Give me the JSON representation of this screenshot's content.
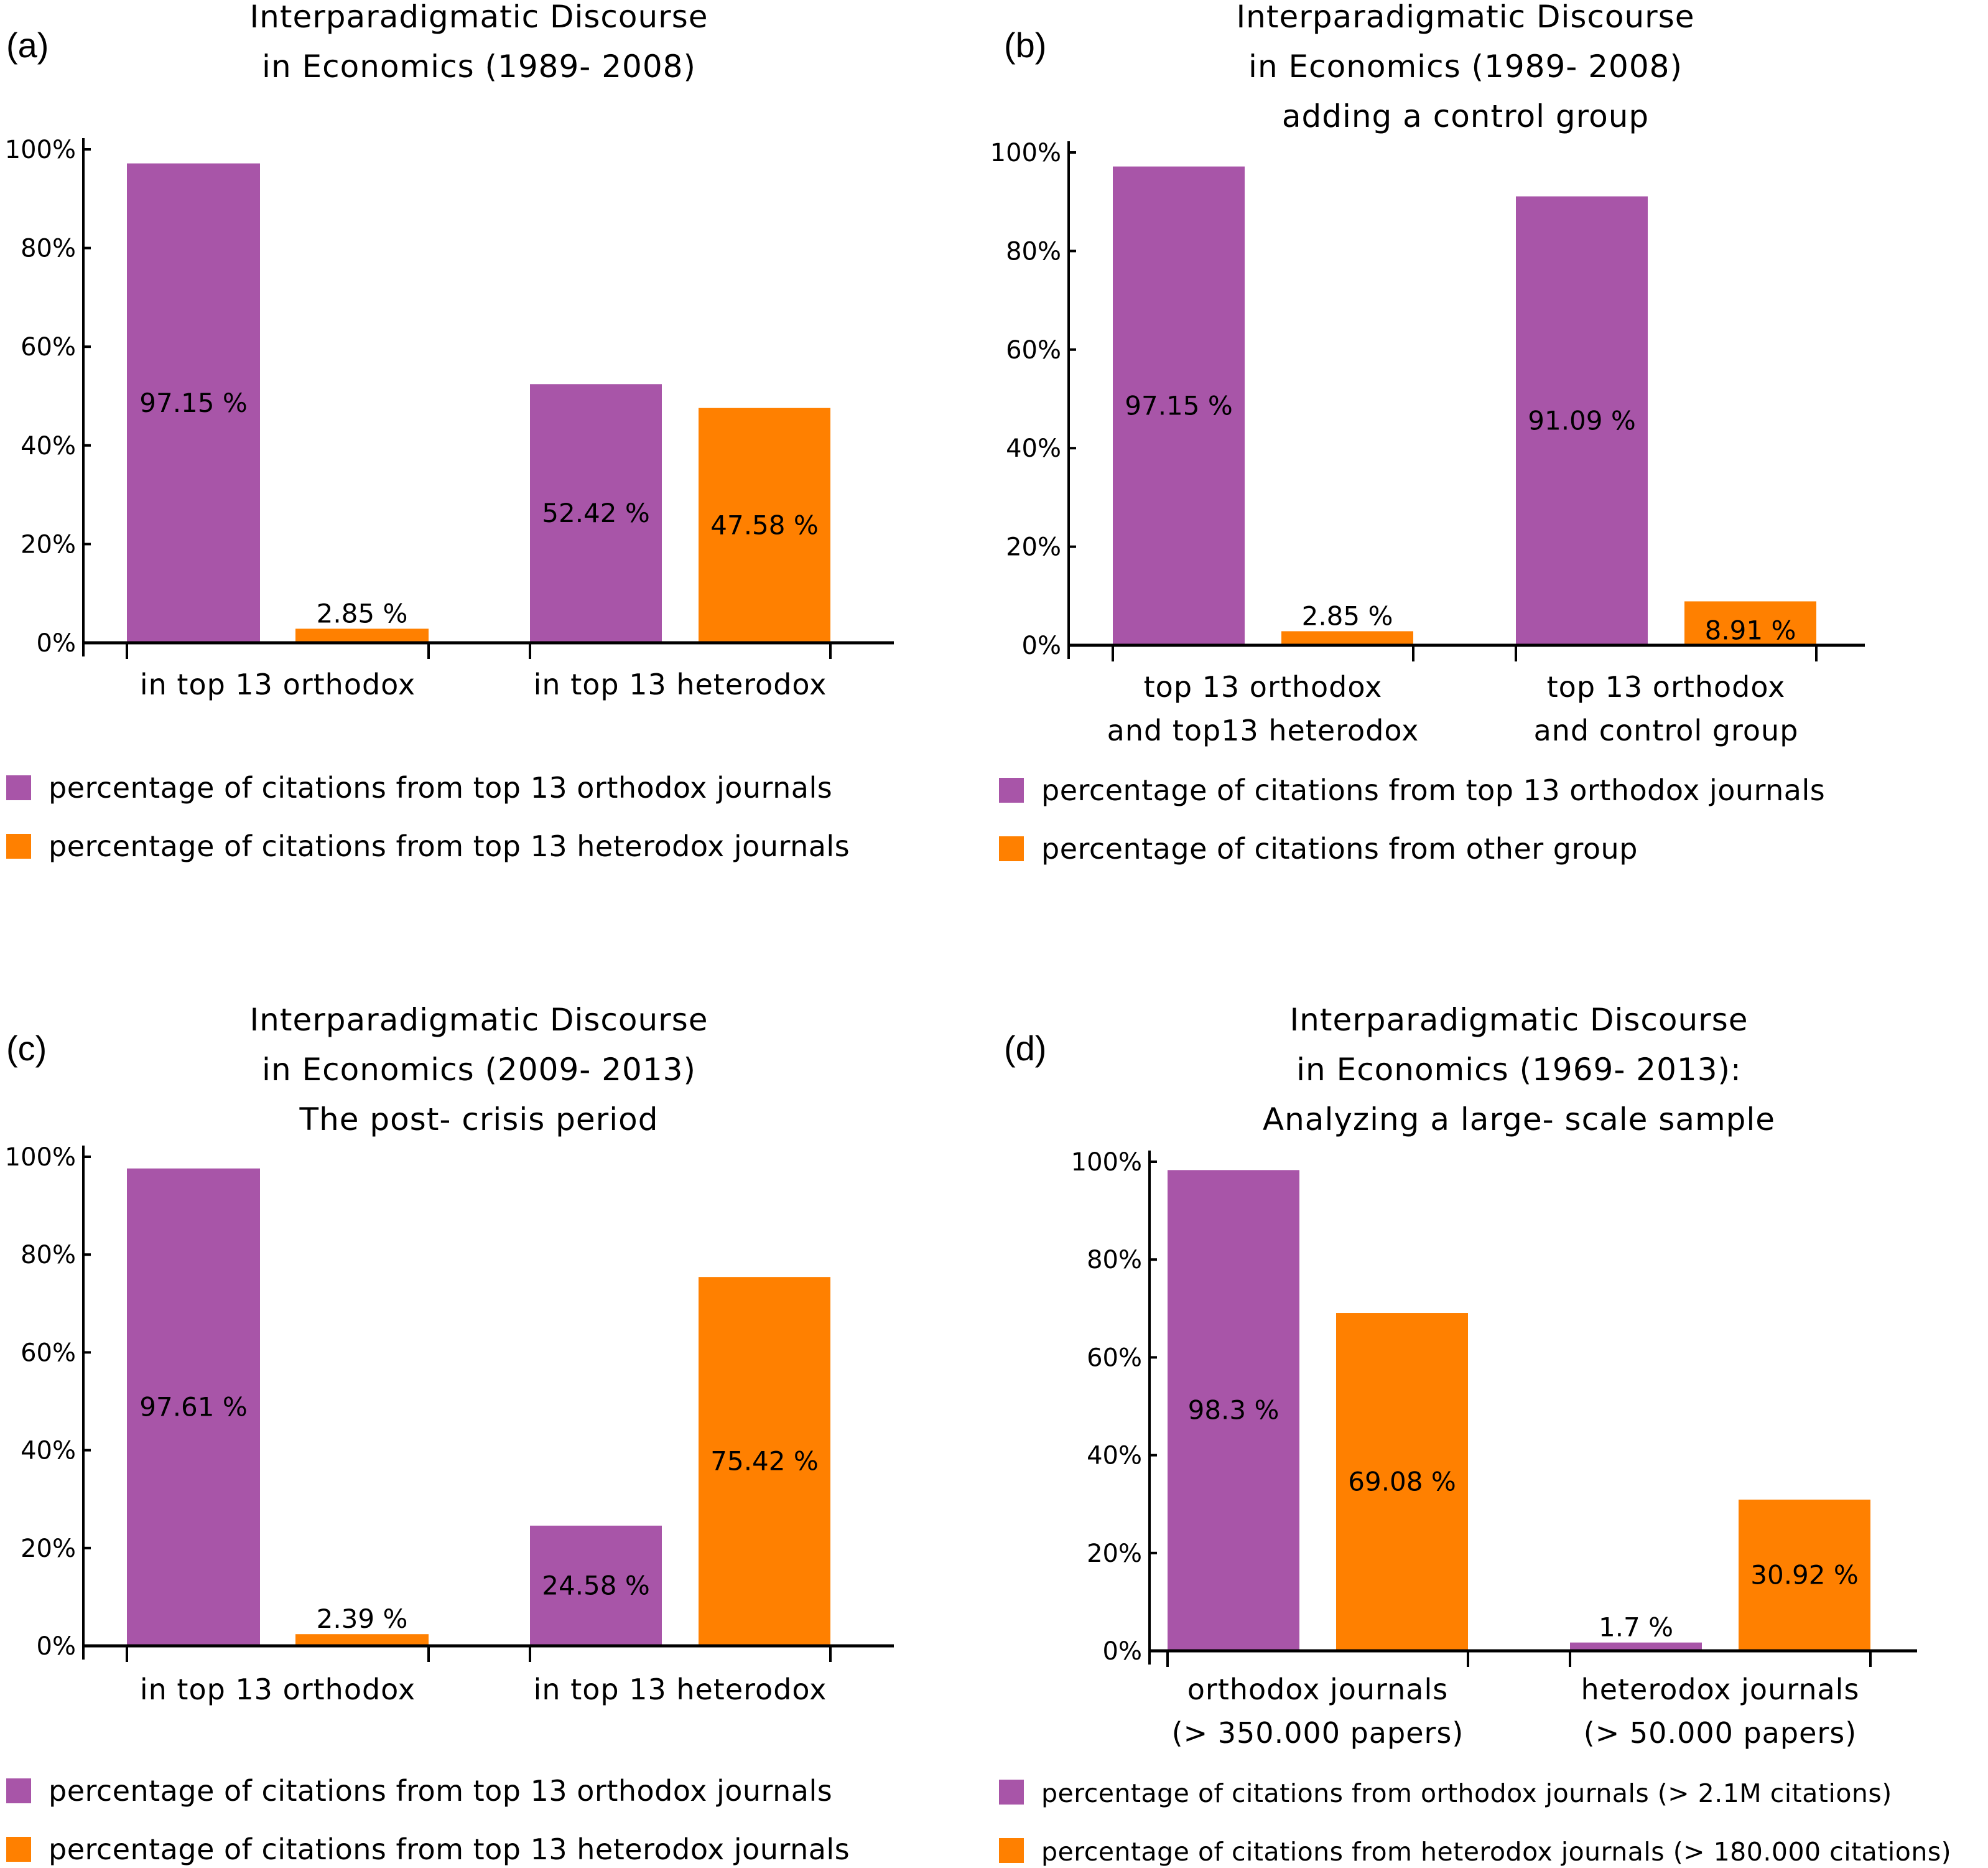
{
  "colors": {
    "orthodox": "#a855a8",
    "other": "#ff8000",
    "text": "#000000"
  },
  "chart_data": [
    {
      "type": "bar",
      "panel_label": "(a)",
      "title": [
        "Interparadigmatic Discourse",
        "in Economics (1989- 2008)"
      ],
      "xlabel": "",
      "ylabel": "",
      "ylim": [
        0,
        100
      ],
      "yticks": [
        "0%",
        "20%",
        "40%",
        "60%",
        "80%",
        "100%"
      ],
      "categories": [
        [
          "in top 13 orthodox"
        ],
        [
          "in top 13 heterodox"
        ]
      ],
      "series": [
        {
          "name": "percentage of citations from top 13 orthodox journals",
          "values": [
            97.15,
            52.42
          ],
          "labels": [
            "97.15 %",
            "52.42 %"
          ]
        },
        {
          "name": "percentage of citations from top 13 heterodox journals",
          "values": [
            2.85,
            47.58
          ],
          "labels": [
            "2.85 %",
            "47.58 %"
          ]
        }
      ],
      "legend_position": "bottom-left"
    },
    {
      "type": "bar",
      "panel_label": "(b)",
      "title": [
        "Interparadigmatic Discourse",
        "in Economics (1989- 2008)",
        "adding a control group"
      ],
      "xlabel": "",
      "ylabel": "",
      "ylim": [
        0,
        100
      ],
      "yticks": [
        "0%",
        "20%",
        "40%",
        "60%",
        "80%",
        "100%"
      ],
      "categories": [
        [
          "top 13 orthodox",
          "and top13 heterodox"
        ],
        [
          "top 13 orthodox",
          "and control group"
        ]
      ],
      "series": [
        {
          "name": "percentage of citations from top 13 orthodox journals",
          "values": [
            97.15,
            91.09
          ],
          "labels": [
            "97.15 %",
            "91.09 %"
          ]
        },
        {
          "name": "percentage of citations from other group",
          "values": [
            2.85,
            8.91
          ],
          "labels": [
            "2.85 %",
            "8.91 %"
          ]
        }
      ],
      "legend_position": "bottom-left"
    },
    {
      "type": "bar",
      "panel_label": "(c)",
      "title": [
        "Interparadigmatic Discourse",
        "in Economics (2009- 2013)",
        "The post- crisis period"
      ],
      "xlabel": "",
      "ylabel": "",
      "ylim": [
        0,
        100
      ],
      "yticks": [
        "0%",
        "20%",
        "40%",
        "60%",
        "80%",
        "100%"
      ],
      "categories": [
        [
          "in top 13 orthodox"
        ],
        [
          "in top 13 heterodox"
        ]
      ],
      "series": [
        {
          "name": "percentage of citations from top 13 orthodox journals",
          "values": [
            97.61,
            24.58
          ],
          "labels": [
            "97.61 %",
            "24.58 %"
          ]
        },
        {
          "name": "percentage of citations from top 13 heterodox journals",
          "values": [
            2.39,
            75.42
          ],
          "labels": [
            "2.39 %",
            "75.42 %"
          ]
        }
      ],
      "legend_position": "bottom-left"
    },
    {
      "type": "bar",
      "panel_label": "(d)",
      "title": [
        "Interparadigmatic Discourse",
        "in Economics (1969- 2013):",
        "Analyzing a large- scale sample"
      ],
      "xlabel": "",
      "ylabel": "",
      "ylim": [
        0,
        100
      ],
      "yticks": [
        "0%",
        "20%",
        "40%",
        "60%",
        "80%",
        "100%"
      ],
      "categories": [
        [
          "orthodox journals",
          "(> 350.000 papers)"
        ],
        [
          "heterodox journals",
          "(> 50.000 papers)"
        ]
      ],
      "series": [
        {
          "name": "percentage of citations from orthodox journals (> 2.1M citations)",
          "values": [
            98.3,
            1.7
          ],
          "labels": [
            "98.3 %",
            "1.7 %"
          ]
        },
        {
          "name": "percentage of citations from heterodox journals (> 180.000 citations)",
          "values": [
            69.08,
            30.92
          ],
          "labels": [
            "69.08 %",
            "30.92 %"
          ]
        }
      ],
      "legend_position": "bottom-left"
    }
  ]
}
